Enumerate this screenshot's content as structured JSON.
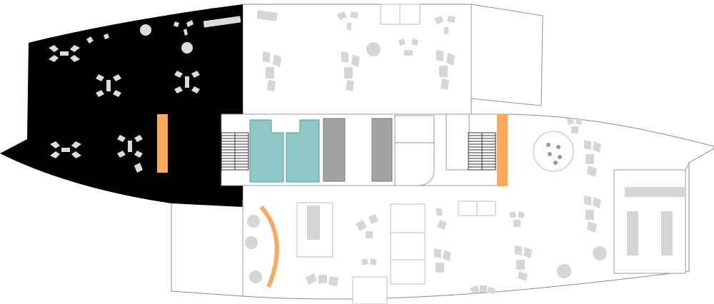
{
  "colors": {
    "background": "#ffffff",
    "dark_zone": "#000000",
    "meeting_rooms": "#8fc8c6",
    "service_blocks": "#a3a3a3",
    "accent_orange": "#f8aa60",
    "furniture": "#d6d6d6",
    "outline": "#8a8a8a"
  },
  "zones": [
    "dark-workspace-zone",
    "open-office-zone",
    "core-zone",
    "lounge-zone"
  ],
  "icons": [
    "stair-icon",
    "round-table-icon",
    "workstation-cluster-icon"
  ]
}
